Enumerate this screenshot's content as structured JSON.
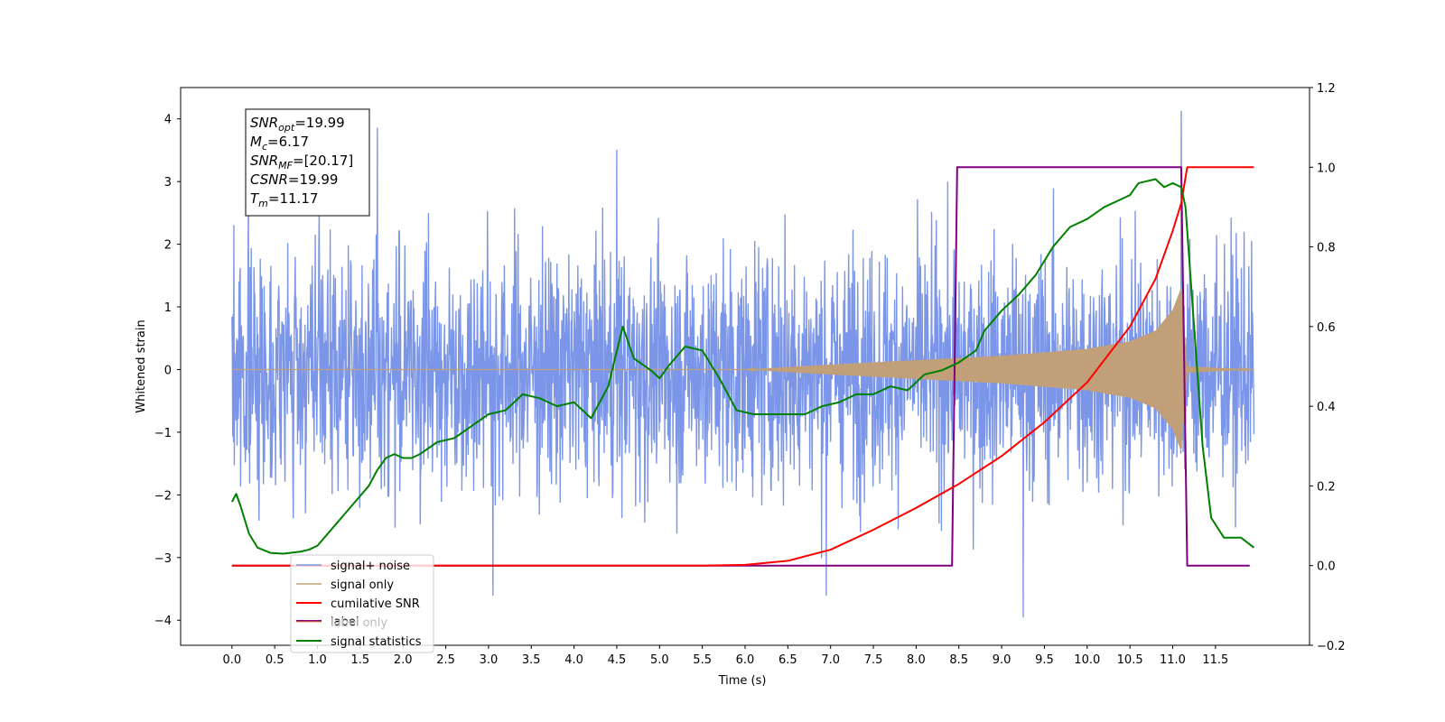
{
  "chart_data": {
    "type": "line",
    "xlabel": "Time (s)",
    "ylabel": "Whitened strain",
    "xlim": [
      -0.6,
      12.6
    ],
    "ylim": [
      -4.4,
      4.5
    ],
    "ylim_right": [
      -0.2,
      1.2
    ],
    "x_ticks": [
      "0.0",
      "0.5",
      "1.0",
      "1.5",
      "2.0",
      "2.5",
      "3.0",
      "3.5",
      "4.0",
      "4.5",
      "5.0",
      "5.5",
      "6.0",
      "6.5",
      "7.0",
      "7.5",
      "8.0",
      "8.5",
      "9.0",
      "9.5",
      "10.0",
      "10.5",
      "11.0",
      "11.5"
    ],
    "y_ticks": [
      "−4",
      "−3",
      "−2",
      "−1",
      "0",
      "1",
      "2",
      "3",
      "4"
    ],
    "y_ticks_right": [
      "−0.2",
      "0.0",
      "0.2",
      "0.4",
      "0.6",
      "0.8",
      "1.0",
      "1.2"
    ],
    "grid": false,
    "legend_position": "lower-left",
    "series": [
      {
        "name": "signal+ noise",
        "axis": "left",
        "color": "#7b96e8",
        "x_range": [
          0.0,
          11.95
        ],
        "amplitude_sd": 0.95,
        "extremes": [
          [
            1.7,
            3.85
          ],
          [
            11.1,
            4.12
          ],
          [
            9.25,
            -3.95
          ],
          [
            3.05,
            -3.6
          ],
          [
            6.95,
            -3.6
          ],
          [
            4.5,
            3.5
          ]
        ]
      },
      {
        "name": "signal only",
        "axis": "left",
        "color": "#c1a079",
        "x_range": [
          0.0,
          11.95
        ],
        "envelope": [
          [
            6.0,
            0.0
          ],
          [
            7.0,
            0.08
          ],
          [
            8.0,
            0.15
          ],
          [
            9.0,
            0.22
          ],
          [
            10.0,
            0.33
          ],
          [
            10.5,
            0.45
          ],
          [
            10.8,
            0.62
          ],
          [
            11.0,
            0.95
          ],
          [
            11.1,
            1.3
          ],
          [
            11.17,
            0.05
          ],
          [
            11.95,
            0.0
          ]
        ]
      },
      {
        "name": "cumilative SNR",
        "axis": "right",
        "color": "#ff0000",
        "points": [
          [
            0.0,
            0.0
          ],
          [
            5.5,
            0.0
          ],
          [
            6.0,
            0.002
          ],
          [
            6.5,
            0.012
          ],
          [
            7.0,
            0.04
          ],
          [
            7.5,
            0.09
          ],
          [
            8.0,
            0.145
          ],
          [
            8.5,
            0.205
          ],
          [
            9.0,
            0.275
          ],
          [
            9.5,
            0.36
          ],
          [
            10.0,
            0.46
          ],
          [
            10.5,
            0.6
          ],
          [
            10.8,
            0.72
          ],
          [
            11.0,
            0.84
          ],
          [
            11.1,
            0.91
          ],
          [
            11.17,
            1.0
          ],
          [
            11.95,
            1.0
          ]
        ]
      },
      {
        "name": "label",
        "axis": "right",
        "color": "#800080",
        "points": [
          [
            0.0,
            0.0
          ],
          [
            8.42,
            0.0
          ],
          [
            8.48,
            1.0
          ],
          [
            11.1,
            1.0
          ],
          [
            11.17,
            0.0
          ],
          [
            11.9,
            0.0
          ]
        ]
      },
      {
        "name": "label only",
        "axis": "right",
        "color": "#ff9933",
        "points": []
      },
      {
        "name": "signal statistics",
        "axis": "right",
        "color": "#008000",
        "points": [
          [
            0.0,
            0.16
          ],
          [
            0.05,
            0.18
          ],
          [
            0.1,
            0.15
          ],
          [
            0.2,
            0.08
          ],
          [
            0.3,
            0.045
          ],
          [
            0.45,
            0.032
          ],
          [
            0.6,
            0.03
          ],
          [
            0.8,
            0.035
          ],
          [
            0.9,
            0.04
          ],
          [
            1.0,
            0.05
          ],
          [
            1.2,
            0.1
          ],
          [
            1.4,
            0.15
          ],
          [
            1.6,
            0.2
          ],
          [
            1.7,
            0.24
          ],
          [
            1.8,
            0.27
          ],
          [
            1.9,
            0.28
          ],
          [
            2.0,
            0.27
          ],
          [
            2.1,
            0.27
          ],
          [
            2.2,
            0.28
          ],
          [
            2.4,
            0.31
          ],
          [
            2.6,
            0.32
          ],
          [
            2.8,
            0.35
          ],
          [
            3.0,
            0.38
          ],
          [
            3.2,
            0.39
          ],
          [
            3.4,
            0.43
          ],
          [
            3.6,
            0.42
          ],
          [
            3.8,
            0.4
          ],
          [
            4.0,
            0.41
          ],
          [
            4.2,
            0.37
          ],
          [
            4.4,
            0.45
          ],
          [
            4.57,
            0.6
          ],
          [
            4.7,
            0.52
          ],
          [
            4.9,
            0.49
          ],
          [
            5.0,
            0.47
          ],
          [
            5.1,
            0.5
          ],
          [
            5.3,
            0.55
          ],
          [
            5.5,
            0.54
          ],
          [
            5.7,
            0.47
          ],
          [
            5.9,
            0.39
          ],
          [
            6.1,
            0.38
          ],
          [
            6.3,
            0.38
          ],
          [
            6.5,
            0.38
          ],
          [
            6.7,
            0.38
          ],
          [
            6.9,
            0.4
          ],
          [
            7.1,
            0.41
          ],
          [
            7.3,
            0.43
          ],
          [
            7.5,
            0.43
          ],
          [
            7.7,
            0.45
          ],
          [
            7.9,
            0.44
          ],
          [
            8.1,
            0.48
          ],
          [
            8.3,
            0.49
          ],
          [
            8.5,
            0.51
          ],
          [
            8.7,
            0.54
          ],
          [
            8.8,
            0.59
          ],
          [
            9.0,
            0.64
          ],
          [
            9.2,
            0.68
          ],
          [
            9.4,
            0.73
          ],
          [
            9.6,
            0.8
          ],
          [
            9.8,
            0.85
          ],
          [
            10.0,
            0.87
          ],
          [
            10.2,
            0.9
          ],
          [
            10.4,
            0.92
          ],
          [
            10.5,
            0.93
          ],
          [
            10.6,
            0.96
          ],
          [
            10.8,
            0.97
          ],
          [
            10.9,
            0.95
          ],
          [
            11.0,
            0.96
          ],
          [
            11.1,
            0.95
          ],
          [
            11.15,
            0.9
          ],
          [
            11.25,
            0.6
          ],
          [
            11.35,
            0.3
          ],
          [
            11.45,
            0.12
          ],
          [
            11.6,
            0.07
          ],
          [
            11.8,
            0.07
          ],
          [
            11.95,
            0.045
          ]
        ]
      }
    ],
    "annotation": [
      {
        "base": "SNR",
        "sub": "opt",
        "value": "=19.99"
      },
      {
        "base": "M",
        "sub": "c",
        "value": "=6.17"
      },
      {
        "base": "SNR",
        "sub": "MF",
        "value": "=[20.17]"
      },
      {
        "base": "CSNR",
        "sub": "",
        "value": "=19.99"
      },
      {
        "base": "T",
        "sub": "m",
        "value": "=11.17"
      }
    ]
  }
}
